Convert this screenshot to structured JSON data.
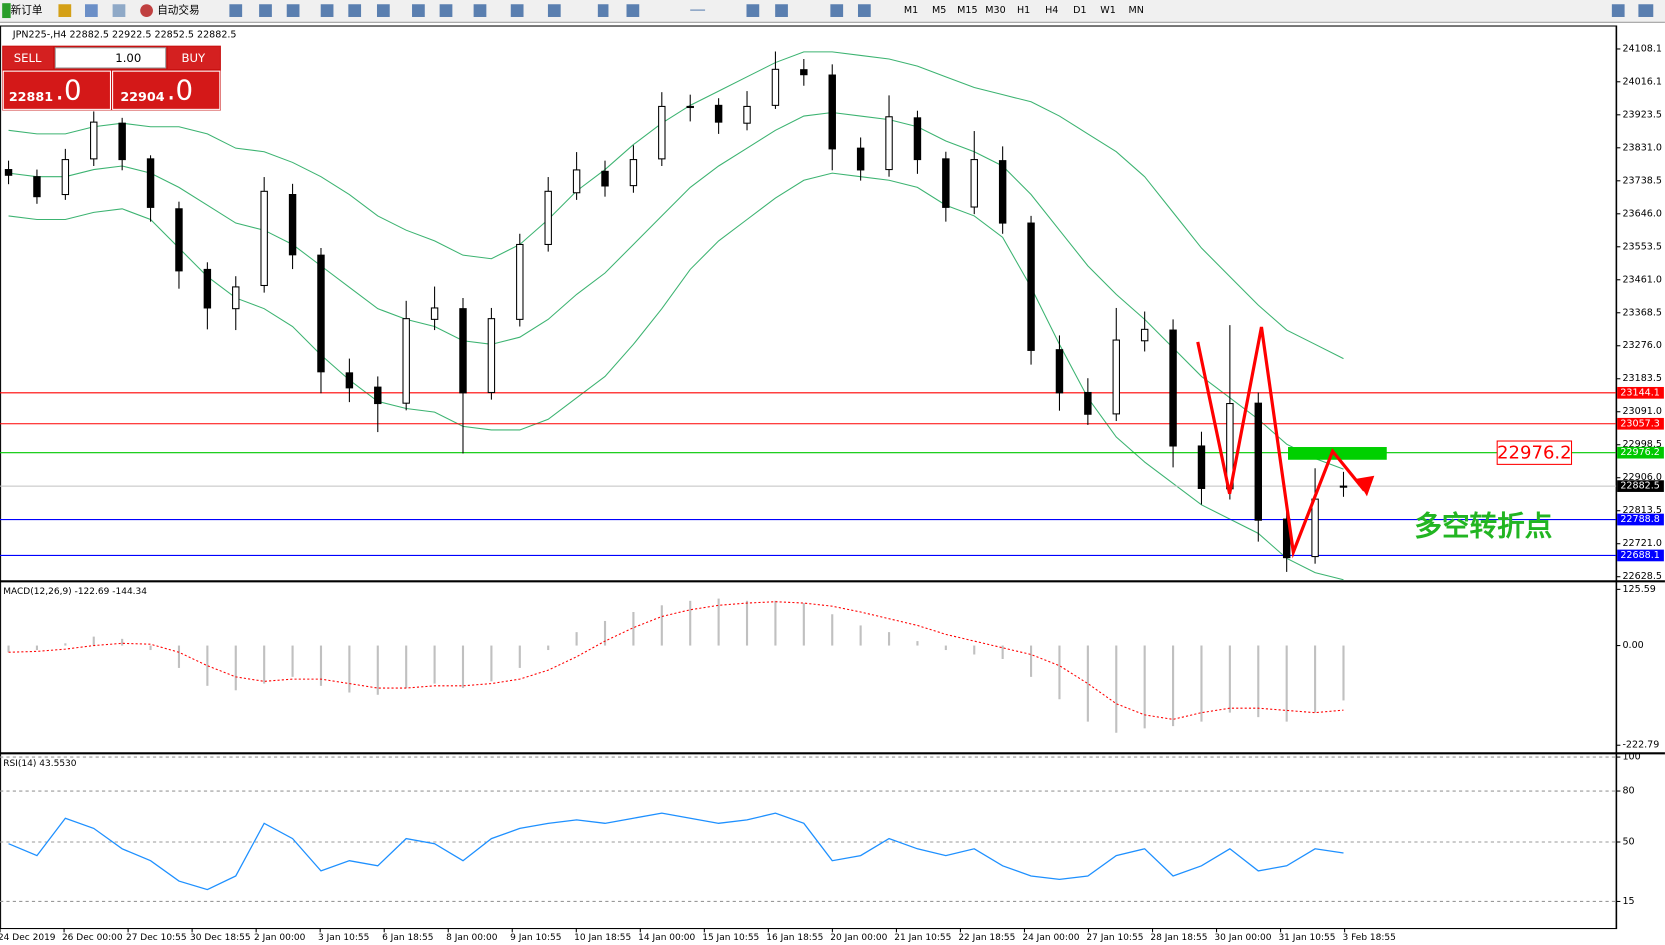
{
  "toolbar": {
    "new_order": "新订单",
    "auto_trading": "自动交易",
    "timeframes": [
      "M1",
      "M5",
      "M15",
      "M30",
      "H1",
      "H4",
      "D1",
      "W1",
      "MN"
    ]
  },
  "trade_panel": {
    "sell": "SELL",
    "lot": "1.00",
    "buy": "BUY",
    "sell_price": {
      "main": "22881",
      "frac": ".0"
    },
    "buy_price": {
      "main": "22904",
      "frac": ".0"
    }
  },
  "time_axis": [
    "24 Dec 2019",
    "26 Dec 00:00",
    "27 Dec 10:55",
    "30 Dec 18:55",
    "2 Jan 00:00",
    "3 Jan 10:55",
    "6 Jan 18:55",
    "8 Jan 00:00",
    "9 Jan 10:55",
    "10 Jan 18:55",
    "14 Jan 00:00",
    "15 Jan 10:55",
    "16 Jan 18:55",
    "20 Jan 00:00",
    "21 Jan 10:55",
    "22 Jan 18:55",
    "24 Jan 00:00",
    "27 Jan 10:55",
    "28 Jan 18:55",
    "30 Jan 00:00",
    "31 Jan 10:55",
    "3 Feb 18:55"
  ],
  "chart_data": [
    {
      "type": "candlestick",
      "title": "JPN225-,H4  22882.5 22922.5 22852.5 22882.5",
      "open": [
        23770,
        23750,
        23700,
        23800,
        23900,
        23800,
        23660,
        23490,
        23380,
        23445,
        23700,
        23530,
        23200,
        23160,
        23115,
        23350,
        23380,
        23145,
        23350,
        23560,
        23705,
        23765,
        23725,
        23800,
        23945,
        23950,
        23900,
        23950,
        24050,
        24035,
        23830,
        23770,
        23915,
        23800,
        23665,
        23795,
        23620,
        23265,
        23145,
        23085,
        23290,
        23320,
        22995,
        22875,
        23115,
        22790,
        22685,
        22882.5
      ],
      "high": [
        23795,
        23770,
        23828,
        23933,
        23915,
        23810,
        23680,
        23510,
        23471,
        23749,
        23730,
        23550,
        23240,
        23190,
        23402,
        23442,
        23410,
        23382,
        23590,
        23749,
        23819,
        23795,
        23838,
        23987,
        23980,
        23970,
        23990,
        24101,
        24080,
        24065,
        23860,
        23978,
        23935,
        23820,
        23878,
        23835,
        23640,
        23305,
        23185,
        23382,
        23372,
        23350,
        23035,
        23334,
        23145,
        22810,
        22932.5,
        22922.5
      ],
      "low": [
        23729,
        23674,
        23685,
        23780,
        23768,
        23624,
        23436,
        23322,
        23320,
        23425,
        23491,
        23143,
        23118,
        23034,
        23095,
        23320,
        22974,
        23125,
        23330,
        23540,
        23685,
        23694,
        23705,
        23780,
        23905,
        23870,
        23880,
        23940,
        24005,
        23768,
        23739,
        23750,
        23758,
        23624,
        23645,
        23590,
        23223,
        23094,
        23054,
        23065,
        23260,
        22935,
        22831,
        22845,
        22727,
        22642,
        22665,
        22852.5
      ],
      "close": [
        23754,
        23694,
        23798,
        23903,
        23798,
        23664,
        23486,
        23382,
        23441,
        23709,
        23531,
        23203,
        23158,
        23114,
        23352,
        23382,
        23144,
        23352,
        23560,
        23709,
        23769,
        23724,
        23798,
        23947,
        23947,
        23903,
        23947,
        24051,
        24036,
        23828,
        23769,
        23918,
        23798,
        23664,
        23798,
        23620,
        23263,
        23144,
        23084,
        23292,
        23322,
        22995,
        22876,
        23114,
        22787,
        22682,
        22846,
        22882.5
      ],
      "bands": [
        {
          "color": "#3cb371",
          "values": [
            23880,
            23870,
            23870,
            23890,
            23900,
            23890,
            23890,
            23870,
            23830,
            23820,
            23790,
            23750,
            23700,
            23640,
            23600,
            23570,
            23530,
            23520,
            23560,
            23630,
            23710,
            23770,
            23840,
            23900,
            23950,
            23990,
            24030,
            24070,
            24100,
            24100,
            24090,
            24080,
            24060,
            24030,
            24000,
            23980,
            23960,
            23920,
            23870,
            23820,
            23750,
            23650,
            23550,
            23470,
            23390,
            23320,
            23280,
            23240
          ]
        },
        {
          "color": "#3cb371",
          "values": [
            23760,
            23750,
            23750,
            23770,
            23780,
            23760,
            23720,
            23670,
            23620,
            23600,
            23560,
            23500,
            23440,
            23380,
            23350,
            23330,
            23290,
            23280,
            23300,
            23350,
            23420,
            23480,
            23560,
            23640,
            23720,
            23780,
            23830,
            23880,
            23920,
            23930,
            23920,
            23910,
            23890,
            23850,
            23820,
            23780,
            23700,
            23600,
            23500,
            23420,
            23350,
            23270,
            23190,
            23130,
            23070,
            23000,
            22960,
            22930
          ]
        },
        {
          "color": "#3cb371",
          "values": [
            23640,
            23630,
            23630,
            23650,
            23660,
            23630,
            23550,
            23470,
            23410,
            23380,
            23330,
            23250,
            23180,
            23120,
            23100,
            23090,
            23050,
            23040,
            23040,
            23070,
            23130,
            23190,
            23280,
            23380,
            23490,
            23570,
            23630,
            23690,
            23740,
            23760,
            23750,
            23740,
            23720,
            23670,
            23640,
            23580,
            23440,
            23280,
            23130,
            23020,
            22950,
            22890,
            22830,
            22790,
            22750,
            22680,
            22640,
            22620
          ]
        }
      ],
      "hlines": [
        {
          "value": 23144.1,
          "color": "#ff0000"
        },
        {
          "value": 23057.3,
          "color": "#ff0000"
        },
        {
          "value": 22976.2,
          "color": "#00c800"
        },
        {
          "value": 22882.5,
          "color": "#c0c0c0",
          "label_color": "#000000"
        },
        {
          "value": 22788.8,
          "color": "#0000ff"
        },
        {
          "value": 22688.1,
          "color": "#0000ff"
        }
      ],
      "annotation": {
        "text": "多空转折点",
        "color": "#22b522"
      },
      "ylim": [
        22620,
        24168
      ],
      "yticks": [
        24108.1,
        24016.1,
        23923.5,
        {
          "value": 23831,
          "label": "23831.0"
        },
        23738.5,
        {
          "value": 23646,
          "label": "23646.0"
        },
        23553.5,
        {
          "value": 23461,
          "label": "23461.0"
        },
        23368.5,
        {
          "value": 23276,
          "label": "23276.0"
        },
        23183.5,
        {
          "value": 23091,
          "label": "23091.0"
        },
        22998.5,
        {
          "value": 22906,
          "label": "22906.0"
        },
        22813.5,
        {
          "value": 22721,
          "label": "22721.0"
        },
        22628.5
      ]
    },
    {
      "type": "macd",
      "title": "MACD(12,26,9) -122.69 -144.34",
      "series": [
        {
          "type": "bar",
          "color": "#c0c0c0",
          "values": [
            -15,
            -10,
            5,
            20,
            15,
            -10,
            -50,
            -90,
            -100,
            -85,
            -70,
            -90,
            -105,
            -110,
            -95,
            -85,
            -95,
            -80,
            -50,
            -10,
            30,
            55,
            75,
            90,
            100,
            105,
            100,
            100,
            95,
            70,
            45,
            30,
            10,
            -10,
            -20,
            -30,
            -70,
            -120,
            -170,
            -195,
            -185,
            -180,
            -170,
            -150,
            -160,
            -170,
            -150,
            -122.69
          ]
        },
        {
          "type": "line",
          "color": "#ff0000",
          "values": [
            -15,
            -13,
            -8,
            0,
            5,
            3,
            -15,
            -45,
            -70,
            -80,
            -75,
            -75,
            -85,
            -95,
            -95,
            -90,
            -90,
            -85,
            -75,
            -55,
            -25,
            10,
            40,
            65,
            80,
            90,
            95,
            98,
            95,
            88,
            75,
            60,
            45,
            25,
            10,
            -5,
            -20,
            -45,
            -85,
            -130,
            -155,
            -165,
            -150,
            -140,
            -140,
            -145,
            -150,
            -144.34
          ]
        }
      ],
      "ylim": [
        -235,
        140
      ],
      "yticks": [
        125.59,
        {
          "value": 0,
          "label": "0.00"
        },
        -222.79
      ]
    },
    {
      "type": "line",
      "title": "RSI(14) 43.5530",
      "series": [
        {
          "color": "#1e90ff",
          "values": [
            49,
            42,
            64,
            58,
            46,
            39,
            27,
            22,
            30,
            61,
            52,
            33,
            39,
            36,
            52,
            49,
            39,
            52,
            58,
            61,
            63,
            61,
            64,
            67,
            64,
            61,
            63,
            67,
            61,
            39,
            42,
            52,
            46,
            42,
            46,
            36,
            30,
            28,
            30,
            42,
            46,
            30,
            36,
            46,
            33,
            36,
            46,
            43.553
          ]
        }
      ],
      "ylim": [
        0,
        100
      ],
      "yticks": [
        100,
        80,
        50,
        15
      ],
      "grid": true
    }
  ]
}
